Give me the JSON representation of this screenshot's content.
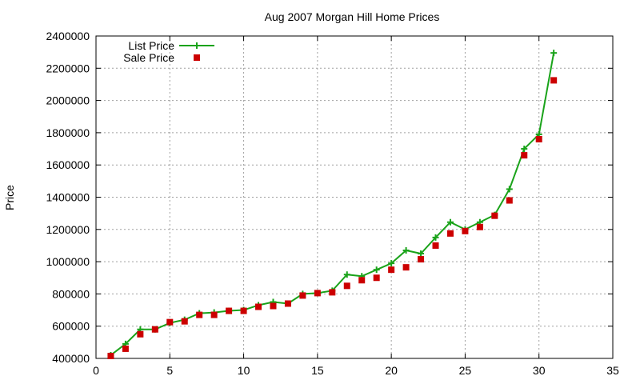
{
  "chart_data": {
    "type": "line",
    "title": "Aug 2007 Morgan Hill Home Prices",
    "xlabel": "",
    "ylabel": "Price",
    "xlim": [
      0,
      35
    ],
    "ylim": [
      400000,
      2400000
    ],
    "xticks": [
      0,
      5,
      10,
      15,
      20,
      25,
      30,
      35
    ],
    "yticks": [
      400000,
      600000,
      800000,
      1000000,
      1200000,
      1400000,
      1600000,
      1800000,
      2000000,
      2200000,
      2400000
    ],
    "grid": true,
    "legend_position": "top-left",
    "series": [
      {
        "name": "List Price",
        "style": "line-plus",
        "color": "#1aa31a",
        "x": [
          1,
          2,
          3,
          4,
          5,
          6,
          7,
          8,
          9,
          10,
          11,
          12,
          13,
          14,
          15,
          16,
          17,
          18,
          19,
          20,
          21,
          22,
          23,
          24,
          25,
          26,
          27,
          28,
          29,
          30,
          31
        ],
        "values": [
          420000,
          490000,
          580000,
          580000,
          620000,
          640000,
          680000,
          685000,
          695000,
          700000,
          730000,
          750000,
          740000,
          800000,
          805000,
          820000,
          920000,
          910000,
          950000,
          990000,
          1070000,
          1050000,
          1150000,
          1245000,
          1200000,
          1245000,
          1290000,
          1450000,
          1700000,
          1790000,
          2295000
        ]
      },
      {
        "name": "Sale Price",
        "style": "square",
        "color": "#cc0000",
        "x": [
          1,
          2,
          3,
          4,
          5,
          6,
          7,
          8,
          9,
          10,
          11,
          12,
          13,
          14,
          15,
          16,
          17,
          18,
          19,
          20,
          21,
          22,
          23,
          24,
          25,
          26,
          27,
          28,
          29,
          30,
          31
        ],
        "values": [
          415000,
          460000,
          550000,
          580000,
          625000,
          630000,
          670000,
          670000,
          695000,
          695000,
          720000,
          725000,
          740000,
          790000,
          805000,
          810000,
          850000,
          885000,
          900000,
          950000,
          965000,
          1015000,
          1100000,
          1175000,
          1190000,
          1215000,
          1285000,
          1380000,
          1660000,
          1760000,
          2125000
        ]
      }
    ]
  }
}
